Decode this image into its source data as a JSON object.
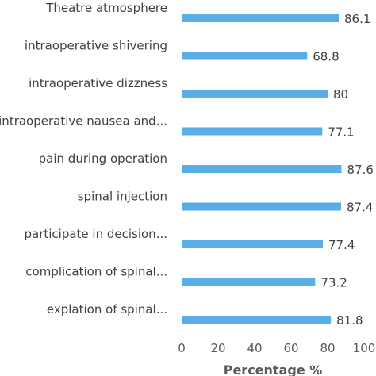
{
  "chart_data": {
    "type": "bar",
    "orientation": "horizontal",
    "categories": [
      "Theatre atmosphere",
      "intraoperative shivering",
      "intraoperative dizzness",
      "intraoperative nausea and...",
      "pain during operation",
      "spinal injection",
      "participate in decision...",
      "complication of spinal...",
      "explation of spinal..."
    ],
    "value_labels": [
      "86.1",
      "68.8",
      "80",
      "77.1",
      "87.6",
      "87.4",
      "77.4",
      "73.2",
      "81.8"
    ],
    "values": [
      86.1,
      68.8,
      80,
      77.1,
      87.6,
      87.4,
      77.4,
      73.2,
      81.8
    ],
    "xlabel": "Percentage %",
    "xlim": [
      0,
      100
    ],
    "xticks": [
      "0",
      "20",
      "40",
      "60",
      "80",
      "100"
    ],
    "bar_color": "#5aaee8",
    "grid": false,
    "legend": "none"
  }
}
